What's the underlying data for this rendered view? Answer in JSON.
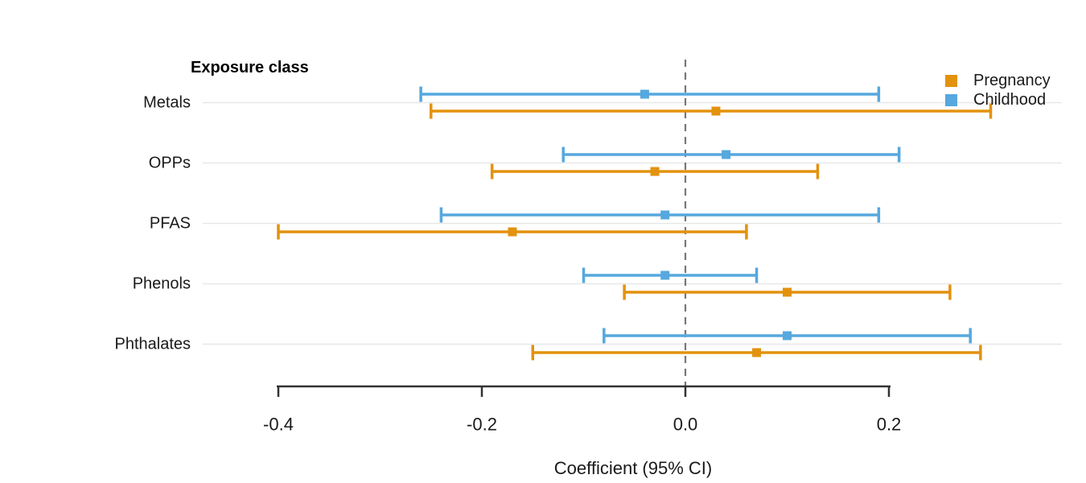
{
  "chart_data": {
    "type": "scatter",
    "variant": "forest-plot-with-error-bars",
    "title": "Exposure class",
    "xlabel": "Coefficient (95% CI)",
    "categories": [
      "Metals",
      "OPPs",
      "PFAS",
      "Phenols",
      "Phthalates"
    ],
    "series": [
      {
        "name": "Pregnancy",
        "color": "#E3920E",
        "estimates": [
          0.03,
          -0.03,
          -0.17,
          0.1,
          0.07
        ],
        "ci_lower": [
          -0.25,
          -0.19,
          -0.4,
          -0.06,
          -0.15
        ],
        "ci_upper": [
          0.3,
          0.13,
          0.06,
          0.26,
          0.29
        ]
      },
      {
        "name": "Childhood",
        "color": "#56A8DE",
        "estimates": [
          -0.04,
          0.04,
          -0.02,
          -0.02,
          0.1
        ],
        "ci_lower": [
          -0.26,
          -0.12,
          -0.24,
          -0.1,
          -0.08
        ],
        "ci_upper": [
          0.19,
          0.21,
          0.19,
          0.07,
          0.28
        ]
      }
    ],
    "x_ticks": [
      -0.4,
      -0.2,
      0.0,
      0.2
    ],
    "x_tick_labels": [
      "-0.4",
      "-0.2",
      "0.0",
      "0.2"
    ],
    "xlim": [
      -0.4,
      0.2
    ],
    "reference_line_x": 0.0,
    "grid": "horizontal-category-lines",
    "legend_position": "top-right",
    "colors": {
      "axis": "#333333",
      "gridline": "#e7e7e7",
      "reference_line": "#777777",
      "text": "#1a1a1a"
    }
  }
}
